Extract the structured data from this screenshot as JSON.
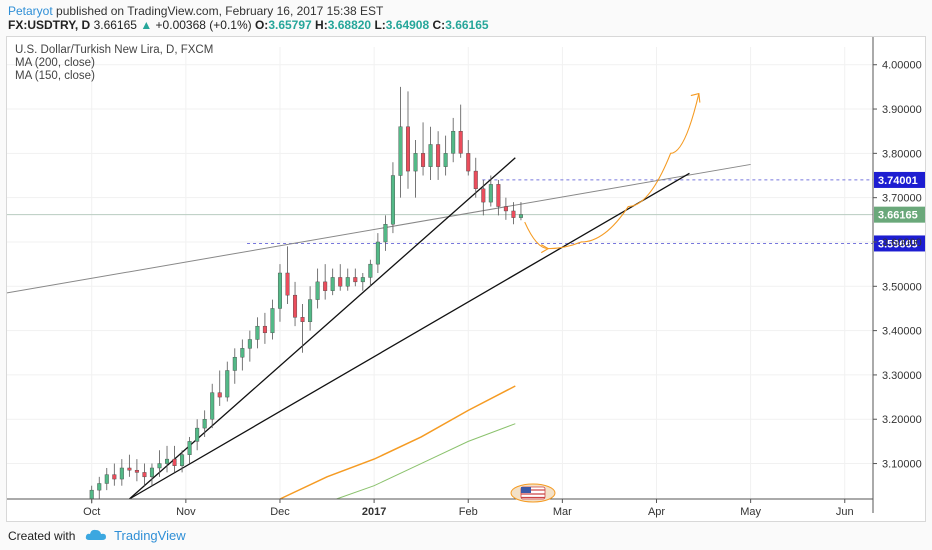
{
  "header": {
    "author": "Petaryot",
    "published": "published on TradingView.com, February 16, 2017 15:38 EST",
    "symbol": "FX:USDTRY, D",
    "last": "3.66165",
    "change_arrow": "▲",
    "change": "+0.00368 (+0.1%)",
    "o_label": "O:",
    "o_value": "3.65797",
    "h_label": "H:",
    "h_value": "3.68820",
    "l_label": "L:",
    "l_value": "3.64908",
    "c_label": "C:",
    "c_value": "3.66165"
  },
  "legend": {
    "title": "U.S. Dollar/Turkish New Lira, D, FXCM",
    "ma1": "MA (200, close)",
    "ma2": "MA (150, close)"
  },
  "footer": {
    "created_with": "Created with",
    "brand": "TradingView"
  },
  "chart_data": {
    "type": "candlestick",
    "title": "U.S. Dollar/Turkish New Lira, D, FXCM",
    "x_ticks": [
      "Oct",
      "Nov",
      "Dec",
      "2017",
      "Feb",
      "Mar",
      "Apr",
      "May",
      "Jun"
    ],
    "x_tick_month_index": [
      0,
      1,
      2,
      3,
      4,
      5,
      6,
      7,
      8
    ],
    "x_range_months": [
      -0.9,
      8.3
    ],
    "y_ticks": [
      "4.00000",
      "3.90000",
      "3.80000",
      "3.70000",
      "3.60000",
      "3.50000",
      "3.40000",
      "3.30000",
      "3.20000",
      "3.10000"
    ],
    "ylim": [
      3.02,
      4.04
    ],
    "price_labels": [
      {
        "text": "3.74001",
        "value": 3.74001,
        "color": "#1d1dd1"
      },
      {
        "text": "3.66165",
        "value": 3.66165,
        "color": "#6aa87a"
      },
      {
        "text": "3.59665",
        "value": 3.59665,
        "color": "#1d1dd1"
      }
    ],
    "horizontal_lines": [
      {
        "value": 3.74001,
        "from_month": 4.15,
        "color": "#7777dd"
      },
      {
        "value": 3.59665,
        "from_month": 1.65,
        "color": "#7777dd"
      },
      {
        "value": 3.66165,
        "from_month": -0.9,
        "color": "#b8ccc0"
      }
    ],
    "trendlines": [
      {
        "from": [
          -0.9,
          3.485
        ],
        "to": [
          7.0,
          3.775
        ],
        "color": "#888888",
        "width": 1
      },
      {
        "from": [
          0.4,
          3.02
        ],
        "to": [
          4.5,
          3.79
        ],
        "color": "#111111",
        "width": 1.3
      },
      {
        "from": [
          0.4,
          3.02
        ],
        "to": [
          6.35,
          3.755
        ],
        "color": "#111111",
        "width": 1.3
      }
    ],
    "ma200": {
      "name": "MA (200, close)",
      "color": "#f59b23",
      "x": [
        2.0,
        2.5,
        3.0,
        3.5,
        4.0,
        4.5
      ],
      "y": [
        3.02,
        3.07,
        3.11,
        3.16,
        3.22,
        3.275
      ]
    },
    "ma150": {
      "name": "MA (150, close)",
      "color": "#8bc26d",
      "x": [
        2.6,
        3.0,
        3.5,
        4.0,
        4.5
      ],
      "y": [
        3.02,
        3.05,
        3.1,
        3.15,
        3.19
      ]
    },
    "projection": {
      "color": "#f59b23",
      "points": [
        [
          4.6,
          3.645
        ],
        [
          4.85,
          3.585
        ],
        [
          5.2,
          3.6
        ],
        [
          5.7,
          3.68
        ],
        [
          6.15,
          3.8
        ],
        [
          6.45,
          3.935
        ]
      ]
    },
    "candles": [
      {
        "m": 0.0,
        "o": 3.02,
        "h": 3.05,
        "l": 3.01,
        "c": 3.04
      },
      {
        "m": 0.08,
        "o": 3.04,
        "h": 3.07,
        "l": 3.02,
        "c": 3.055
      },
      {
        "m": 0.16,
        "o": 3.055,
        "h": 3.09,
        "l": 3.04,
        "c": 3.075
      },
      {
        "m": 0.24,
        "o": 3.075,
        "h": 3.1,
        "l": 3.05,
        "c": 3.065
      },
      {
        "m": 0.32,
        "o": 3.065,
        "h": 3.11,
        "l": 3.05,
        "c": 3.09
      },
      {
        "m": 0.4,
        "o": 3.09,
        "h": 3.12,
        "l": 3.07,
        "c": 3.085
      },
      {
        "m": 0.48,
        "o": 3.085,
        "h": 3.11,
        "l": 3.06,
        "c": 3.08
      },
      {
        "m": 0.56,
        "o": 3.08,
        "h": 3.1,
        "l": 3.05,
        "c": 3.07
      },
      {
        "m": 0.64,
        "o": 3.07,
        "h": 3.1,
        "l": 3.05,
        "c": 3.09
      },
      {
        "m": 0.72,
        "o": 3.09,
        "h": 3.13,
        "l": 3.07,
        "c": 3.1
      },
      {
        "m": 0.8,
        "o": 3.1,
        "h": 3.14,
        "l": 3.08,
        "c": 3.11
      },
      {
        "m": 0.88,
        "o": 3.11,
        "h": 3.14,
        "l": 3.08,
        "c": 3.095
      },
      {
        "m": 0.96,
        "o": 3.095,
        "h": 3.13,
        "l": 3.08,
        "c": 3.12
      },
      {
        "m": 1.04,
        "o": 3.12,
        "h": 3.16,
        "l": 3.1,
        "c": 3.15
      },
      {
        "m": 1.12,
        "o": 3.15,
        "h": 3.2,
        "l": 3.13,
        "c": 3.18
      },
      {
        "m": 1.2,
        "o": 3.18,
        "h": 3.22,
        "l": 3.16,
        "c": 3.2
      },
      {
        "m": 1.28,
        "o": 3.2,
        "h": 3.28,
        "l": 3.18,
        "c": 3.26
      },
      {
        "m": 1.36,
        "o": 3.26,
        "h": 3.31,
        "l": 3.23,
        "c": 3.25
      },
      {
        "m": 1.44,
        "o": 3.25,
        "h": 3.33,
        "l": 3.24,
        "c": 3.31
      },
      {
        "m": 1.52,
        "o": 3.31,
        "h": 3.36,
        "l": 3.28,
        "c": 3.34
      },
      {
        "m": 1.6,
        "o": 3.34,
        "h": 3.38,
        "l": 3.31,
        "c": 3.36
      },
      {
        "m": 1.68,
        "o": 3.36,
        "h": 3.4,
        "l": 3.33,
        "c": 3.38
      },
      {
        "m": 1.76,
        "o": 3.38,
        "h": 3.43,
        "l": 3.36,
        "c": 3.41
      },
      {
        "m": 1.84,
        "o": 3.41,
        "h": 3.44,
        "l": 3.37,
        "c": 3.395
      },
      {
        "m": 1.92,
        "o": 3.395,
        "h": 3.47,
        "l": 3.38,
        "c": 3.45
      },
      {
        "m": 2.0,
        "o": 3.45,
        "h": 3.55,
        "l": 3.42,
        "c": 3.53
      },
      {
        "m": 2.08,
        "o": 3.53,
        "h": 3.59,
        "l": 3.46,
        "c": 3.48
      },
      {
        "m": 2.16,
        "o": 3.48,
        "h": 3.51,
        "l": 3.41,
        "c": 3.43
      },
      {
        "m": 2.24,
        "o": 3.43,
        "h": 3.46,
        "l": 3.35,
        "c": 3.42
      },
      {
        "m": 2.32,
        "o": 3.42,
        "h": 3.5,
        "l": 3.4,
        "c": 3.47
      },
      {
        "m": 2.4,
        "o": 3.47,
        "h": 3.54,
        "l": 3.45,
        "c": 3.51
      },
      {
        "m": 2.48,
        "o": 3.51,
        "h": 3.55,
        "l": 3.47,
        "c": 3.49
      },
      {
        "m": 2.56,
        "o": 3.49,
        "h": 3.54,
        "l": 3.48,
        "c": 3.52
      },
      {
        "m": 2.64,
        "o": 3.52,
        "h": 3.55,
        "l": 3.49,
        "c": 3.5
      },
      {
        "m": 2.72,
        "o": 3.5,
        "h": 3.54,
        "l": 3.49,
        "c": 3.52
      },
      {
        "m": 2.8,
        "o": 3.52,
        "h": 3.54,
        "l": 3.5,
        "c": 3.51
      },
      {
        "m": 2.88,
        "o": 3.51,
        "h": 3.53,
        "l": 3.49,
        "c": 3.52
      },
      {
        "m": 2.96,
        "o": 3.52,
        "h": 3.56,
        "l": 3.5,
        "c": 3.55
      },
      {
        "m": 3.04,
        "o": 3.55,
        "h": 3.62,
        "l": 3.53,
        "c": 3.6
      },
      {
        "m": 3.12,
        "o": 3.6,
        "h": 3.66,
        "l": 3.58,
        "c": 3.64
      },
      {
        "m": 3.2,
        "o": 3.64,
        "h": 3.78,
        "l": 3.62,
        "c": 3.75
      },
      {
        "m": 3.28,
        "o": 3.75,
        "h": 3.95,
        "l": 3.7,
        "c": 3.86
      },
      {
        "m": 3.36,
        "o": 3.86,
        "h": 3.94,
        "l": 3.72,
        "c": 3.76
      },
      {
        "m": 3.44,
        "o": 3.76,
        "h": 3.83,
        "l": 3.7,
        "c": 3.8
      },
      {
        "m": 3.52,
        "o": 3.8,
        "h": 3.87,
        "l": 3.75,
        "c": 3.77
      },
      {
        "m": 3.6,
        "o": 3.77,
        "h": 3.86,
        "l": 3.74,
        "c": 3.82
      },
      {
        "m": 3.68,
        "o": 3.82,
        "h": 3.85,
        "l": 3.74,
        "c": 3.77
      },
      {
        "m": 3.76,
        "o": 3.77,
        "h": 3.84,
        "l": 3.75,
        "c": 3.8
      },
      {
        "m": 3.84,
        "o": 3.8,
        "h": 3.88,
        "l": 3.78,
        "c": 3.85
      },
      {
        "m": 3.92,
        "o": 3.85,
        "h": 3.91,
        "l": 3.79,
        "c": 3.8
      },
      {
        "m": 4.0,
        "o": 3.8,
        "h": 3.83,
        "l": 3.75,
        "c": 3.76
      },
      {
        "m": 4.08,
        "o": 3.76,
        "h": 3.79,
        "l": 3.7,
        "c": 3.72
      },
      {
        "m": 4.16,
        "o": 3.72,
        "h": 3.74,
        "l": 3.66,
        "c": 3.69
      },
      {
        "m": 4.24,
        "o": 3.69,
        "h": 3.75,
        "l": 3.68,
        "c": 3.73
      },
      {
        "m": 4.32,
        "o": 3.73,
        "h": 3.74,
        "l": 3.66,
        "c": 3.68
      },
      {
        "m": 4.4,
        "o": 3.68,
        "h": 3.7,
        "l": 3.65,
        "c": 3.67
      },
      {
        "m": 4.48,
        "o": 3.67,
        "h": 3.69,
        "l": 3.64,
        "c": 3.655
      },
      {
        "m": 4.56,
        "o": 3.655,
        "h": 3.69,
        "l": 3.649,
        "c": 3.662
      }
    ],
    "colors": {
      "up": "#53b987",
      "down": "#eb4d5c",
      "wick": "#555555"
    }
  }
}
